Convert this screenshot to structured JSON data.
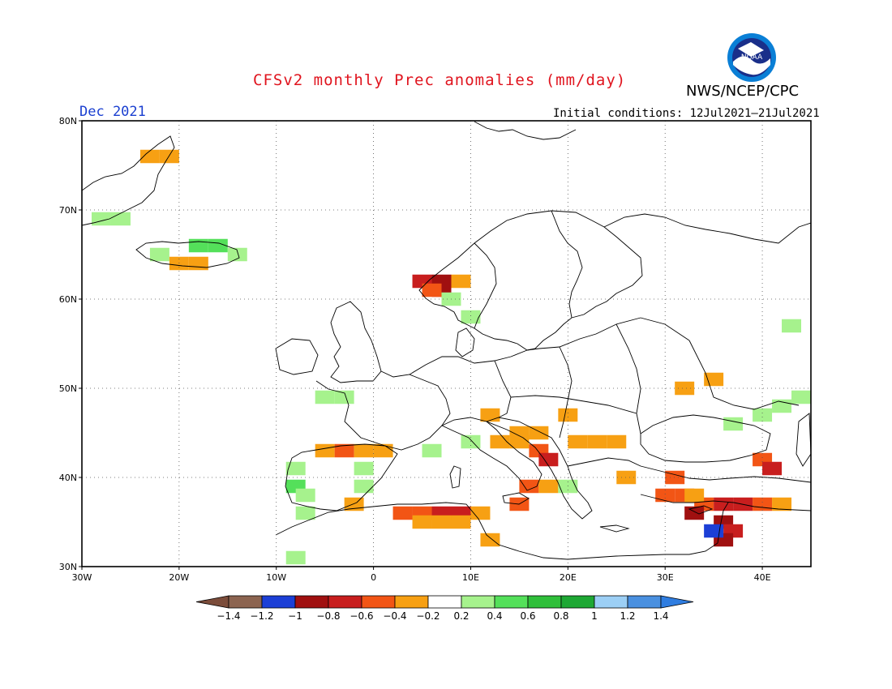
{
  "header": {
    "title": "CFSv2 monthly Prec anomalies (mm/day)",
    "agency": "NWS/NCEP/CPC",
    "logo_text": "NOAA",
    "month": "Dec 2021",
    "initial_conditions": "Initial conditions: 12Jul2021–21Jul2021"
  },
  "map": {
    "extent": {
      "lon_min": -30,
      "lon_max": 45,
      "lat_min": 30,
      "lat_max": 80
    },
    "grid_lines": true,
    "lon_labels": [
      "30W",
      "20W",
      "10W",
      "0",
      "10E",
      "20E",
      "30E",
      "40E"
    ],
    "lat_labels": [
      "30N",
      "40N",
      "50N",
      "60N",
      "70N",
      "80N"
    ],
    "anomaly_cells": [
      {
        "lon": -23,
        "lat": 76,
        "v": -0.3
      },
      {
        "lon": -21,
        "lat": 76,
        "v": -0.3
      },
      {
        "lon": -28,
        "lat": 69,
        "v": 0.3
      },
      {
        "lon": -26,
        "lat": 69,
        "v": 0.3
      },
      {
        "lon": -22,
        "lat": 65,
        "v": 0.3
      },
      {
        "lon": -18,
        "lat": 66,
        "v": 0.5
      },
      {
        "lon": -16,
        "lat": 66,
        "v": 0.5
      },
      {
        "lon": -14,
        "lat": 65,
        "v": 0.3
      },
      {
        "lon": -20,
        "lat": 64,
        "v": -0.3
      },
      {
        "lon": -18,
        "lat": 64,
        "v": -0.3
      },
      {
        "lon": 5,
        "lat": 62,
        "v": -0.7
      },
      {
        "lon": 7,
        "lat": 62,
        "v": -0.9
      },
      {
        "lon": 7,
        "lat": 61,
        "v": -0.9
      },
      {
        "lon": 6,
        "lat": 61,
        "v": -0.5
      },
      {
        "lon": 9,
        "lat": 62,
        "v": -0.3
      },
      {
        "lon": 8,
        "lat": 60,
        "v": 0.3
      },
      {
        "lon": 10,
        "lat": 58,
        "v": 0.3
      },
      {
        "lon": -5,
        "lat": 49,
        "v": 0.3
      },
      {
        "lon": -3,
        "lat": 49,
        "v": 0.3
      },
      {
        "lon": -5,
        "lat": 43,
        "v": -0.3
      },
      {
        "lon": -3,
        "lat": 43,
        "v": -0.5
      },
      {
        "lon": -1,
        "lat": 43,
        "v": -0.3
      },
      {
        "lon": 1,
        "lat": 43,
        "v": -0.3
      },
      {
        "lon": -8,
        "lat": 41,
        "v": 0.3
      },
      {
        "lon": -8,
        "lat": 39,
        "v": 0.5
      },
      {
        "lon": -7,
        "lat": 38,
        "v": 0.3
      },
      {
        "lon": -7,
        "lat": 36,
        "v": 0.3
      },
      {
        "lon": -1,
        "lat": 41,
        "v": 0.3
      },
      {
        "lon": -1,
        "lat": 39,
        "v": 0.3
      },
      {
        "lon": -2,
        "lat": 37,
        "v": -0.3
      },
      {
        "lon": 5,
        "lat": 36,
        "v": -0.5
      },
      {
        "lon": 7,
        "lat": 36,
        "v": -0.7
      },
      {
        "lon": 9,
        "lat": 36,
        "v": -0.7
      },
      {
        "lon": 3,
        "lat": 36,
        "v": -0.5
      },
      {
        "lon": 5,
        "lat": 35,
        "v": -0.3
      },
      {
        "lon": 7,
        "lat": 35,
        "v": -0.3
      },
      {
        "lon": 9,
        "lat": 35,
        "v": -0.3
      },
      {
        "lon": 11,
        "lat": 36,
        "v": -0.3
      },
      {
        "lon": 12,
        "lat": 33,
        "v": -0.3
      },
      {
        "lon": 13,
        "lat": 44,
        "v": -0.3
      },
      {
        "lon": 15,
        "lat": 44,
        "v": -0.3
      },
      {
        "lon": 17,
        "lat": 43,
        "v": -0.5
      },
      {
        "lon": 18,
        "lat": 42,
        "v": -0.7
      },
      {
        "lon": 15,
        "lat": 45,
        "v": -0.3
      },
      {
        "lon": 17,
        "lat": 45,
        "v": -0.3
      },
      {
        "lon": 12,
        "lat": 47,
        "v": -0.3
      },
      {
        "lon": 21,
        "lat": 44,
        "v": -0.3
      },
      {
        "lon": 23,
        "lat": 44,
        "v": -0.3
      },
      {
        "lon": 25,
        "lat": 44,
        "v": -0.3
      },
      {
        "lon": 20,
        "lat": 47,
        "v": -0.3
      },
      {
        "lon": 16,
        "lat": 39,
        "v": -0.5
      },
      {
        "lon": 18,
        "lat": 39,
        "v": -0.3
      },
      {
        "lon": 15,
        "lat": 37,
        "v": -0.5
      },
      {
        "lon": 10,
        "lat": 44,
        "v": 0.3
      },
      {
        "lon": 6,
        "lat": 43,
        "v": 0.3
      },
      {
        "lon": 20,
        "lat": 39,
        "v": 0.3
      },
      {
        "lon": 26,
        "lat": 40,
        "v": -0.3
      },
      {
        "lon": 30,
        "lat": 38,
        "v": -0.5
      },
      {
        "lon": 32,
        "lat": 38,
        "v": -0.5
      },
      {
        "lon": 34,
        "lat": 37,
        "v": -0.5
      },
      {
        "lon": 36,
        "lat": 37,
        "v": -0.7
      },
      {
        "lon": 38,
        "lat": 37,
        "v": -0.7
      },
      {
        "lon": 40,
        "lat": 37,
        "v": -0.5
      },
      {
        "lon": 42,
        "lat": 37,
        "v": -0.3
      },
      {
        "lon": 33,
        "lat": 36,
        "v": -0.9
      },
      {
        "lon": 36,
        "lat": 35,
        "v": -0.9
      },
      {
        "lon": 37,
        "lat": 34,
        "v": -0.7
      },
      {
        "lon": 36,
        "lat": 33,
        "v": -0.9
      },
      {
        "lon": 31,
        "lat": 40,
        "v": -0.5
      },
      {
        "lon": 33,
        "lat": 38,
        "v": -0.3
      },
      {
        "lon": 35,
        "lat": 34,
        "v": -1.1
      },
      {
        "lon": 40,
        "lat": 42,
        "v": -0.5
      },
      {
        "lon": 41,
        "lat": 41,
        "v": -0.7
      },
      {
        "lon": 32,
        "lat": 50,
        "v": -0.3
      },
      {
        "lon": 35,
        "lat": 51,
        "v": -0.3
      },
      {
        "lon": 40,
        "lat": 47,
        "v": 0.3
      },
      {
        "lon": 42,
        "lat": 48,
        "v": 0.3
      },
      {
        "lon": 44,
        "lat": 49,
        "v": 0.3
      },
      {
        "lon": 37,
        "lat": 46,
        "v": 0.3
      },
      {
        "lon": 43,
        "lat": 57,
        "v": 0.3
      },
      {
        "lon": -8,
        "lat": 31,
        "v": 0.3
      }
    ]
  },
  "colorbar": {
    "bins": [
      {
        "color": "#8c6450"
      },
      {
        "color": "#1c3fd6"
      },
      {
        "color": "#a01010"
      },
      {
        "color": "#c81e1e"
      },
      {
        "color": "#f25515"
      },
      {
        "color": "#f7a013"
      },
      {
        "color": "#ffffff"
      },
      {
        "color": "#a6f28d"
      },
      {
        "color": "#54e05a"
      },
      {
        "color": "#2fbf3a"
      },
      {
        "color": "#1ea834"
      },
      {
        "color": "#9ccff5"
      },
      {
        "color": "#4a90e0"
      }
    ],
    "low_arrow_color": "#7b4c3a",
    "high_arrow_color": "#2f7de0",
    "tick_labels": [
      "-1.4",
      "-1.2",
      "-1",
      "-0.8",
      "-0.6",
      "-0.4",
      "-0.2",
      "0.2",
      "0.4",
      "0.6",
      "0.8",
      "1",
      "1.2",
      "1.4"
    ]
  }
}
